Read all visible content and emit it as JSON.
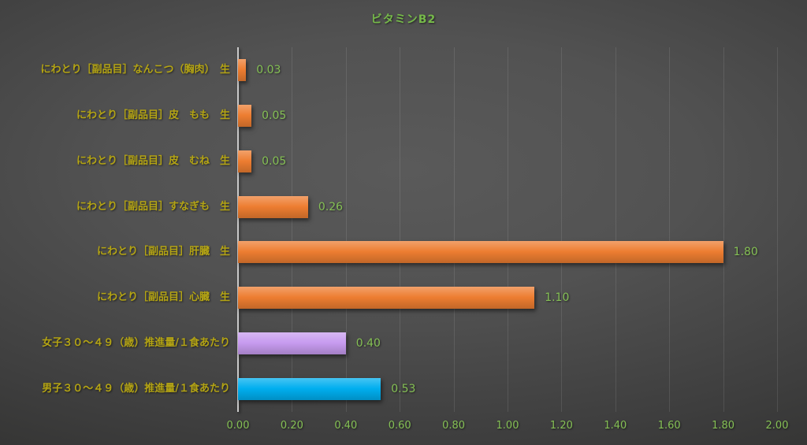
{
  "title": "ビタミンB2",
  "colors": {
    "title_text": "#76b94a",
    "category_label_text": "#b4a414",
    "value_label_text": "#85c055",
    "axis_tick_text": "#85c055",
    "axis_line": "#c9c9c9",
    "gridline": "rgba(255,255,255,0.10)",
    "bar_palette": {
      "orange": "#ed7d31",
      "purple": "#c79bef",
      "blue": "#00aeef"
    }
  },
  "chart_data": {
    "type": "bar",
    "orientation": "horizontal",
    "title": "ビタミンB2",
    "categories_top_to_bottom": [
      "にわとり［副品目］なんこつ（胸肉）　生",
      "にわとり［副品目］皮　もも　生",
      "にわとり［副品目］皮　むね　生",
      "にわとり［副品目］すなぎも　生",
      "にわとり［副品目］肝臓　生",
      "にわとり［副品目］心臓　生",
      "女子３０～４９（歳）推進量/１食あたり",
      "男子３０～４９（歳）推進量/１食あたり"
    ],
    "values": [
      0.03,
      0.05,
      0.05,
      0.26,
      1.8,
      1.1,
      0.4,
      0.53
    ],
    "value_labels": [
      "0.03",
      "0.05",
      "0.05",
      "0.26",
      "1.80",
      "1.10",
      "0.40",
      "0.53"
    ],
    "bar_color_names": [
      "orange",
      "orange",
      "orange",
      "orange",
      "orange",
      "orange",
      "purple",
      "blue"
    ],
    "xlim": [
      0.0,
      2.0
    ],
    "x_tick_step": 0.2,
    "x_tick_labels": [
      "0.00",
      "0.20",
      "0.40",
      "0.60",
      "0.80",
      "1.00",
      "1.20",
      "1.40",
      "1.60",
      "1.80",
      "2.00"
    ],
    "xlabel": "",
    "ylabel": "",
    "grid": "vertical",
    "legend": "none"
  }
}
